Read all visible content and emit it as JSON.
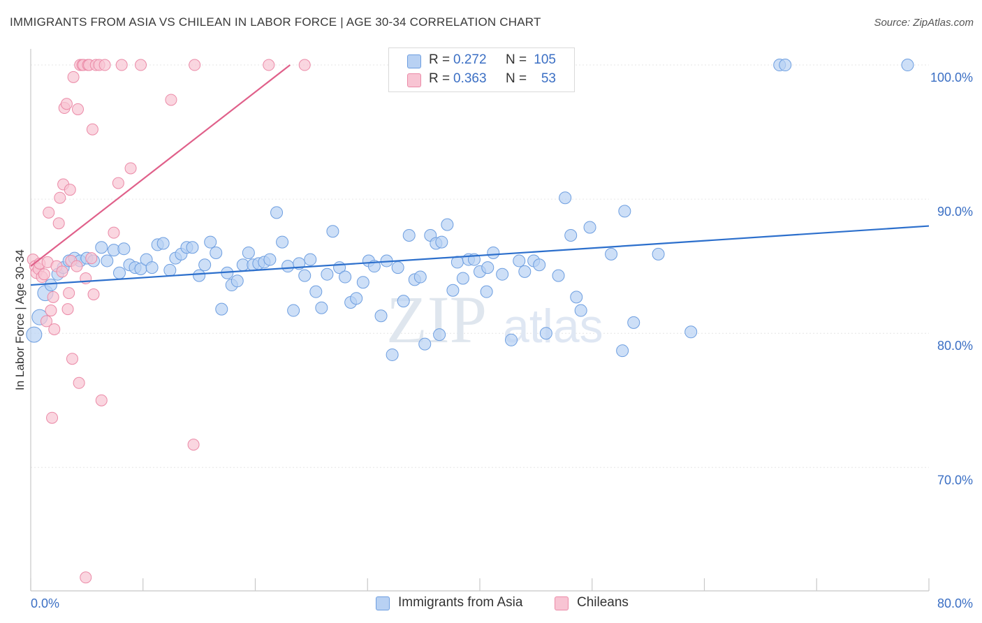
{
  "header": {
    "title": "IMMIGRANTS FROM ASIA VS CHILEAN IN LABOR FORCE | AGE 30-34 CORRELATION CHART",
    "source": "Source: ZipAtlas.com"
  },
  "watermark": {
    "zip": "ZIP",
    "atlas": "atlas"
  },
  "legend": {
    "r_label": "R =",
    "n_label": "N =",
    "series": [
      {
        "name": "Immigrants from Asia",
        "r": "0.272",
        "n": "105"
      },
      {
        "name": "Chileans",
        "r": "0.363",
        "n": "53"
      }
    ]
  },
  "colors": {
    "blue_fill": "#b8d1f3",
    "blue_stroke": "#6d9ee0",
    "blue_line": "#2c6fcc",
    "pink_fill": "#f8c4d3",
    "pink_stroke": "#eb8aa7",
    "pink_line": "#e0608a",
    "tick_label": "#3b6fc4",
    "grid": "#e6e6e6",
    "axis": "#c8c8c8"
  },
  "chart_data": {
    "type": "scatter",
    "title": "IMMIGRANTS FROM ASIA VS CHILEAN IN LABOR FORCE | AGE 30-34 CORRELATION CHART",
    "xlabel": "",
    "ylabel": "In Labor Force | Age 30-34",
    "xlim": [
      0,
      80
    ],
    "ylim": [
      60.8,
      101.2
    ],
    "x_tick_labels": [
      "0.0%",
      "80.0%"
    ],
    "y_ticks": [
      {
        "value": 100,
        "label": "100.0%"
      },
      {
        "value": 90,
        "label": "90.0%"
      },
      {
        "value": 80,
        "label": "80.0%"
      },
      {
        "value": 70,
        "label": "70.0%"
      }
    ],
    "grid": true,
    "series": [
      {
        "name": "Immigrants from Asia",
        "r": 0.272,
        "n": 105,
        "trend": {
          "x0": 0,
          "y0": 83.6,
          "x1": 80,
          "y1": 88.0
        },
        "points": [
          [
            0.3,
            79.9
          ],
          [
            0.8,
            81.2
          ],
          [
            1.3,
            83.0
          ],
          [
            1.8,
            83.6
          ],
          [
            2.4,
            84.4
          ],
          [
            2.9,
            84.9
          ],
          [
            3.4,
            85.4
          ],
          [
            3.9,
            85.6
          ],
          [
            4.4,
            85.4
          ],
          [
            5.0,
            85.6
          ],
          [
            5.6,
            85.4
          ],
          [
            6.3,
            86.4
          ],
          [
            6.8,
            85.4
          ],
          [
            7.4,
            86.2
          ],
          [
            7.9,
            84.5
          ],
          [
            8.3,
            86.3
          ],
          [
            8.8,
            85.1
          ],
          [
            9.3,
            84.9
          ],
          [
            9.8,
            84.8
          ],
          [
            10.3,
            85.5
          ],
          [
            10.8,
            84.9
          ],
          [
            11.3,
            86.6
          ],
          [
            11.8,
            86.7
          ],
          [
            12.4,
            84.7
          ],
          [
            12.9,
            85.6
          ],
          [
            13.4,
            85.9
          ],
          [
            13.9,
            86.4
          ],
          [
            14.4,
            86.4
          ],
          [
            15.0,
            84.3
          ],
          [
            15.5,
            85.1
          ],
          [
            16.0,
            86.8
          ],
          [
            16.5,
            86.0
          ],
          [
            17.0,
            81.8
          ],
          [
            17.5,
            84.5
          ],
          [
            17.9,
            83.6
          ],
          [
            18.4,
            83.9
          ],
          [
            18.9,
            85.1
          ],
          [
            19.4,
            86.0
          ],
          [
            19.8,
            85.1
          ],
          [
            20.3,
            85.2
          ],
          [
            20.8,
            85.3
          ],
          [
            21.3,
            85.5
          ],
          [
            21.9,
            89.0
          ],
          [
            22.4,
            86.8
          ],
          [
            22.9,
            85.0
          ],
          [
            23.4,
            81.7
          ],
          [
            23.9,
            85.2
          ],
          [
            24.4,
            84.3
          ],
          [
            24.9,
            85.5
          ],
          [
            25.4,
            83.1
          ],
          [
            25.9,
            81.9
          ],
          [
            26.4,
            84.4
          ],
          [
            26.9,
            87.6
          ],
          [
            27.5,
            84.9
          ],
          [
            28.0,
            84.2
          ],
          [
            28.5,
            82.3
          ],
          [
            29.0,
            82.6
          ],
          [
            29.6,
            83.8
          ],
          [
            30.1,
            85.4
          ],
          [
            30.6,
            85.0
          ],
          [
            31.2,
            81.3
          ],
          [
            31.7,
            85.4
          ],
          [
            32.2,
            78.4
          ],
          [
            32.7,
            84.9
          ],
          [
            33.2,
            82.4
          ],
          [
            33.7,
            87.3
          ],
          [
            34.2,
            84.0
          ],
          [
            34.7,
            84.2
          ],
          [
            35.1,
            79.2
          ],
          [
            35.6,
            87.3
          ],
          [
            36.1,
            86.7
          ],
          [
            36.6,
            86.8
          ],
          [
            37.1,
            88.1
          ],
          [
            37.6,
            83.2
          ],
          [
            38.0,
            85.3
          ],
          [
            38.5,
            84.1
          ],
          [
            39.0,
            85.5
          ],
          [
            39.5,
            85.5
          ],
          [
            40.0,
            84.6
          ],
          [
            40.6,
            83.1
          ],
          [
            41.2,
            86.0
          ],
          [
            42.0,
            84.4
          ],
          [
            42.8,
            79.5
          ],
          [
            43.5,
            85.4
          ],
          [
            44.0,
            84.6
          ],
          [
            44.8,
            85.4
          ],
          [
            45.3,
            85.1
          ],
          [
            45.9,
            80.0
          ],
          [
            47.0,
            84.3
          ],
          [
            47.6,
            90.1
          ],
          [
            48.1,
            87.3
          ],
          [
            48.6,
            82.7
          ],
          [
            49.0,
            81.7
          ],
          [
            49.8,
            87.9
          ],
          [
            51.7,
            85.9
          ],
          [
            52.7,
            78.7
          ],
          [
            52.9,
            89.1
          ],
          [
            53.7,
            80.8
          ],
          [
            55.9,
            85.9
          ],
          [
            58.8,
            80.1
          ],
          [
            66.7,
            100.0
          ],
          [
            67.2,
            100.0
          ],
          [
            78.1,
            100.0
          ],
          [
            40.7,
            84.9
          ],
          [
            36.4,
            79.9
          ]
        ]
      },
      {
        "name": "Chileans",
        "r": 0.363,
        "n": 53,
        "trend": {
          "x0": 0,
          "y0": 85.0,
          "x1": 23.1,
          "y1": 100.0
        },
        "points": [
          [
            0.2,
            85.5
          ],
          [
            0.4,
            85.0
          ],
          [
            0.5,
            84.5
          ],
          [
            0.7,
            84.8
          ],
          [
            0.8,
            85.2
          ],
          [
            1.0,
            84.2
          ],
          [
            1.2,
            84.4
          ],
          [
            1.4,
            80.9
          ],
          [
            1.5,
            85.3
          ],
          [
            1.6,
            89.0
          ],
          [
            1.8,
            81.7
          ],
          [
            1.9,
            73.7
          ],
          [
            2.0,
            82.7
          ],
          [
            2.1,
            80.3
          ],
          [
            2.3,
            85.0
          ],
          [
            2.5,
            88.2
          ],
          [
            2.6,
            90.1
          ],
          [
            2.8,
            84.6
          ],
          [
            2.9,
            91.1
          ],
          [
            3.0,
            96.8
          ],
          [
            3.2,
            97.1
          ],
          [
            3.3,
            81.8
          ],
          [
            3.4,
            83.0
          ],
          [
            3.5,
            90.7
          ],
          [
            3.6,
            85.4
          ],
          [
            3.7,
            78.1
          ],
          [
            3.8,
            99.1
          ],
          [
            4.1,
            85.0
          ],
          [
            4.2,
            96.7
          ],
          [
            4.3,
            76.3
          ],
          [
            4.4,
            100.0
          ],
          [
            4.6,
            100.0
          ],
          [
            4.7,
            100.0
          ],
          [
            4.9,
            84.1
          ],
          [
            5.1,
            100.0
          ],
          [
            5.2,
            100.0
          ],
          [
            5.4,
            85.6
          ],
          [
            5.5,
            95.2
          ],
          [
            5.6,
            82.9
          ],
          [
            5.8,
            100.0
          ],
          [
            6.1,
            100.0
          ],
          [
            6.3,
            75.0
          ],
          [
            6.6,
            100.0
          ],
          [
            7.4,
            87.5
          ],
          [
            7.8,
            91.2
          ],
          [
            8.1,
            100.0
          ],
          [
            8.9,
            92.3
          ],
          [
            9.8,
            100.0
          ],
          [
            12.5,
            97.4
          ],
          [
            14.6,
            100.0
          ],
          [
            14.5,
            71.7
          ],
          [
            21.2,
            100.0
          ],
          [
            24.4,
            100.0
          ]
        ],
        "extra_low_point": [
          4.9,
          61.8
        ]
      }
    ]
  }
}
